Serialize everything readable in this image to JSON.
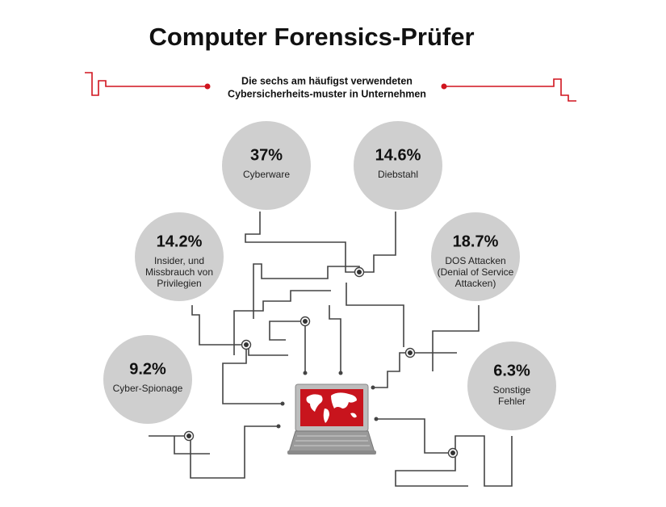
{
  "header": {
    "title": "Computer Forensics-Prüfer",
    "subtitle": [
      "Die sechs am häufigst verwendeten",
      "Cybersicherheits-muster in Unternehmen"
    ]
  },
  "nodes": [
    {
      "value": "37%",
      "label": [
        "Cyberware"
      ]
    },
    {
      "value": "14.6%",
      "label": [
        "Diebstahl"
      ]
    },
    {
      "value": "14.2%",
      "label": [
        "Insider, und",
        "Missbrauch von",
        "Privilegien"
      ]
    },
    {
      "value": "18.7%",
      "label": [
        "DOS Attacken",
        "(Denial of Service",
        "Attacken)"
      ]
    },
    {
      "value": "9.2%",
      "label": [
        "Cyber-Spionage"
      ]
    },
    {
      "value": "6.3%",
      "label": [
        "Sonstige",
        "Fehler"
      ]
    }
  ]
}
